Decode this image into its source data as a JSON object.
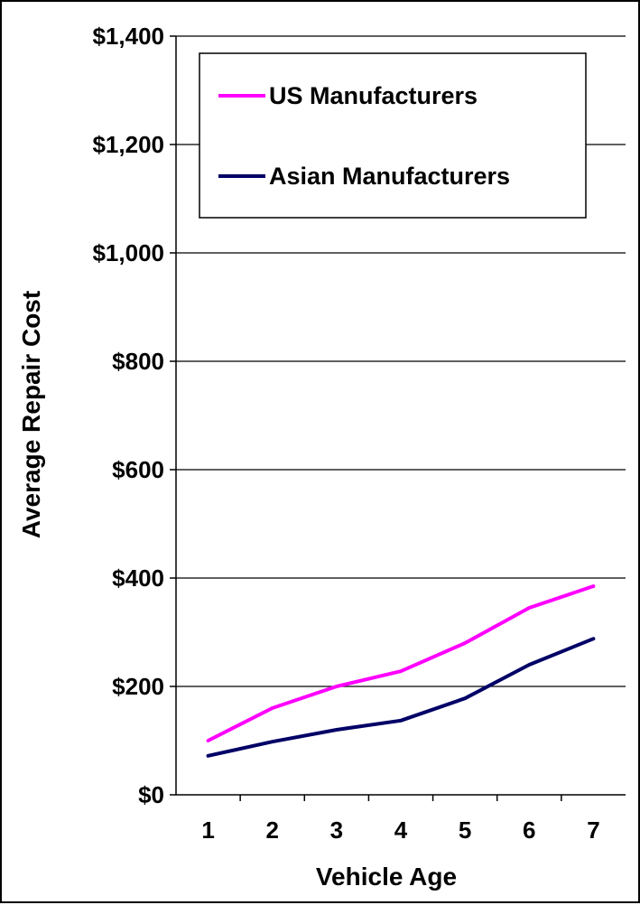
{
  "chart_data": {
    "type": "line",
    "title": "",
    "xlabel": "Vehicle Age",
    "ylabel": "Average Repair Cost",
    "categories": [
      "1",
      "2",
      "3",
      "4",
      "5",
      "6",
      "7"
    ],
    "ylim": [
      0,
      1400
    ],
    "yticks": [
      0,
      200,
      400,
      600,
      800,
      1000,
      1200,
      1400
    ],
    "ytick_labels": [
      "$0",
      "$200",
      "$400",
      "$600",
      "$800",
      "$1,000",
      "$1,200",
      "$1,400"
    ],
    "grid": "horizontal",
    "legend_position": "top-right",
    "series": [
      {
        "name": "US Manufacturers",
        "color": "#ff00ff",
        "values": [
          100,
          160,
          200,
          228,
          280,
          345,
          385
        ]
      },
      {
        "name": "Asian Manufacturers",
        "color": "#000066",
        "values": [
          72,
          98,
          120,
          137,
          178,
          240,
          288
        ]
      }
    ]
  }
}
